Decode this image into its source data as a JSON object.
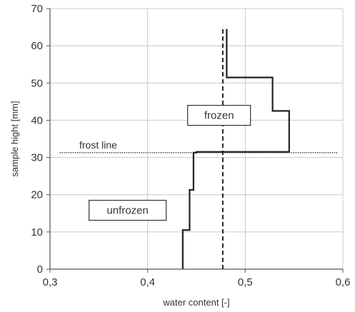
{
  "chart_data": {
    "type": "line",
    "xlabel": "water content [-]",
    "ylabel": "sample hight [mm]",
    "xlim": [
      0.3,
      0.6
    ],
    "ylim": [
      0,
      70
    ],
    "xticks": [
      0.3,
      0.4,
      0.5,
      0.6
    ],
    "xtick_labels": [
      "0,3",
      "0,4",
      "0,5",
      "0,6"
    ],
    "yticks": [
      0,
      10,
      20,
      30,
      40,
      50,
      60,
      70
    ],
    "ytick_labels": [
      "0",
      "10",
      "20",
      "30",
      "40",
      "50",
      "60",
      "70"
    ],
    "grid": true,
    "series": [
      {
        "style": "solid",
        "color": "#222222",
        "x": [
          0.436,
          0.436,
          0.443,
          0.443,
          0.447,
          0.447,
          0.45,
          0.45,
          0.545,
          0.545,
          0.528,
          0.528,
          0.483,
          0.483,
          0.481,
          0.481
        ],
        "y": [
          0,
          10.5,
          10.5,
          21.3,
          21.3,
          31.3,
          31.3,
          31.5,
          31.5,
          42.5,
          42.5,
          51.5,
          51.5,
          51.5,
          51.5,
          64.5
        ]
      },
      {
        "style": "dashed",
        "color": "#222222",
        "x": [
          0.477,
          0.477
        ],
        "y": [
          0,
          64.5
        ]
      }
    ],
    "reference_line": {
      "label": "frost line",
      "y": 31.3,
      "style": "dotted",
      "color": "#555555"
    },
    "annotations": [
      {
        "text": "frozen",
        "x": 0.441,
        "y": 44
      },
      {
        "text": "unfrozen",
        "x": 0.34,
        "y": 18.5
      }
    ]
  }
}
